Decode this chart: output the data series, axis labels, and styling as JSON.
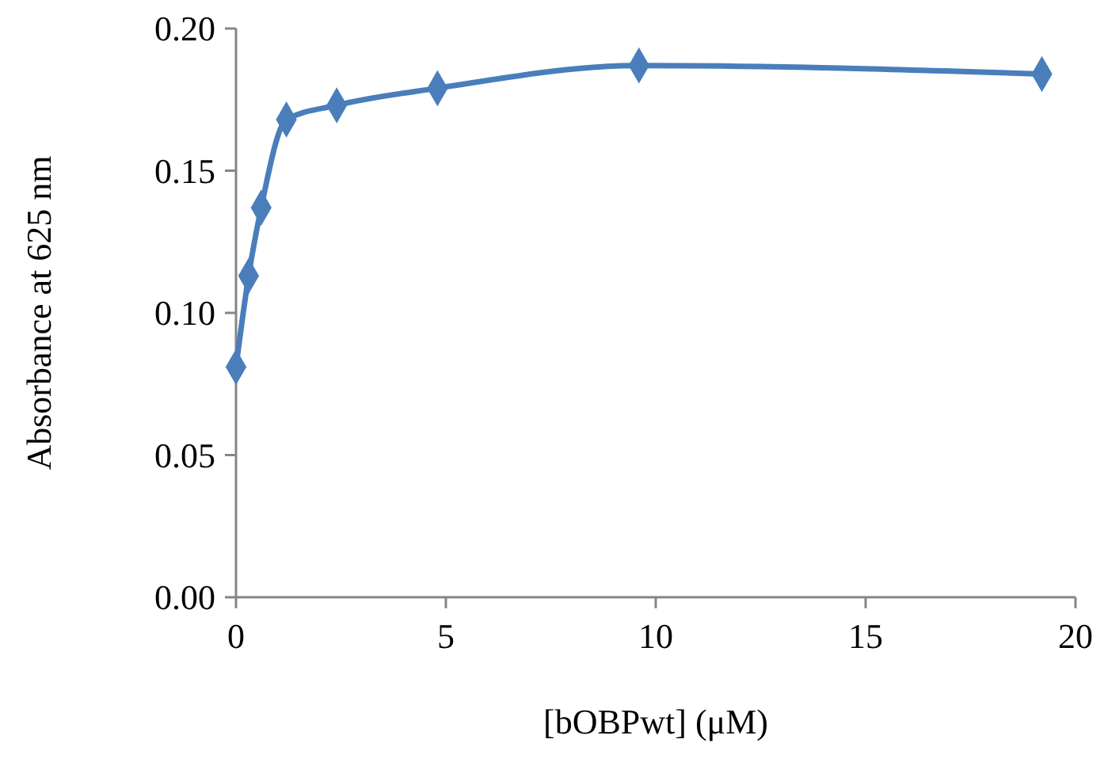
{
  "chart_data": {
    "type": "line",
    "xlabel": "[bOBPwt] (μM)",
    "ylabel": "Absorbance at 625 nm",
    "x": [
      0,
      0.3,
      0.6,
      1.2,
      2.4,
      4.8,
      9.6,
      19.2
    ],
    "series": [
      {
        "color": "#4a7ebb",
        "values": [
          0.081,
          0.113,
          0.137,
          0.168,
          0.173,
          0.179,
          0.187,
          0.184
        ]
      }
    ],
    "xlim": [
      0,
      20
    ],
    "xticks": [
      0,
      5,
      10,
      15,
      20
    ],
    "ylim": [
      0,
      0.2
    ],
    "yticks": [
      {
        "value": 0,
        "label": "0.00"
      },
      {
        "value": 0.05,
        "label": "0.05"
      },
      {
        "value": 0.1,
        "label": "0.10"
      },
      {
        "value": 0.15,
        "label": "0.15"
      },
      {
        "value": 0.2,
        "label": "0.20"
      }
    ],
    "marker": "diamond",
    "grid": false
  }
}
